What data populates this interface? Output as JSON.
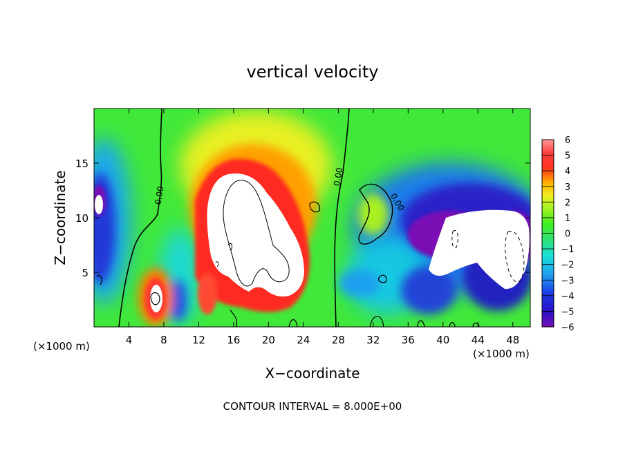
{
  "chart_data": {
    "type": "heatmap",
    "title": "vertical velocity",
    "xlabel": "X−coordinate",
    "ylabel": "Z−coordinate",
    "x_unit_left": "(×1000 m)",
    "x_unit_right": "(×1000 m)",
    "footer": "CONTOUR INTERVAL = 8.000E+00",
    "xlim": [
      0,
      50
    ],
    "ylim": [
      0,
      20
    ],
    "x_ticks": [
      4,
      8,
      12,
      16,
      20,
      24,
      28,
      32,
      36,
      40,
      44,
      48
    ],
    "y_ticks": [
      5,
      10,
      15
    ],
    "colorbar": {
      "min": -6,
      "max": 6,
      "ticks": [
        "6",
        "5",
        "4",
        "3",
        "2",
        "1",
        "0",
        "−1",
        "−2",
        "−3",
        "−4",
        "−5",
        "−6"
      ]
    },
    "contour_labels": [
      {
        "text": "0.00",
        "x": 7.8,
        "y": 12.0
      },
      {
        "text": "0.00",
        "x": 28.3,
        "y": 13.7
      },
      {
        "text": "0.00",
        "x": 34.5,
        "y": 11.3
      }
    ]
  }
}
